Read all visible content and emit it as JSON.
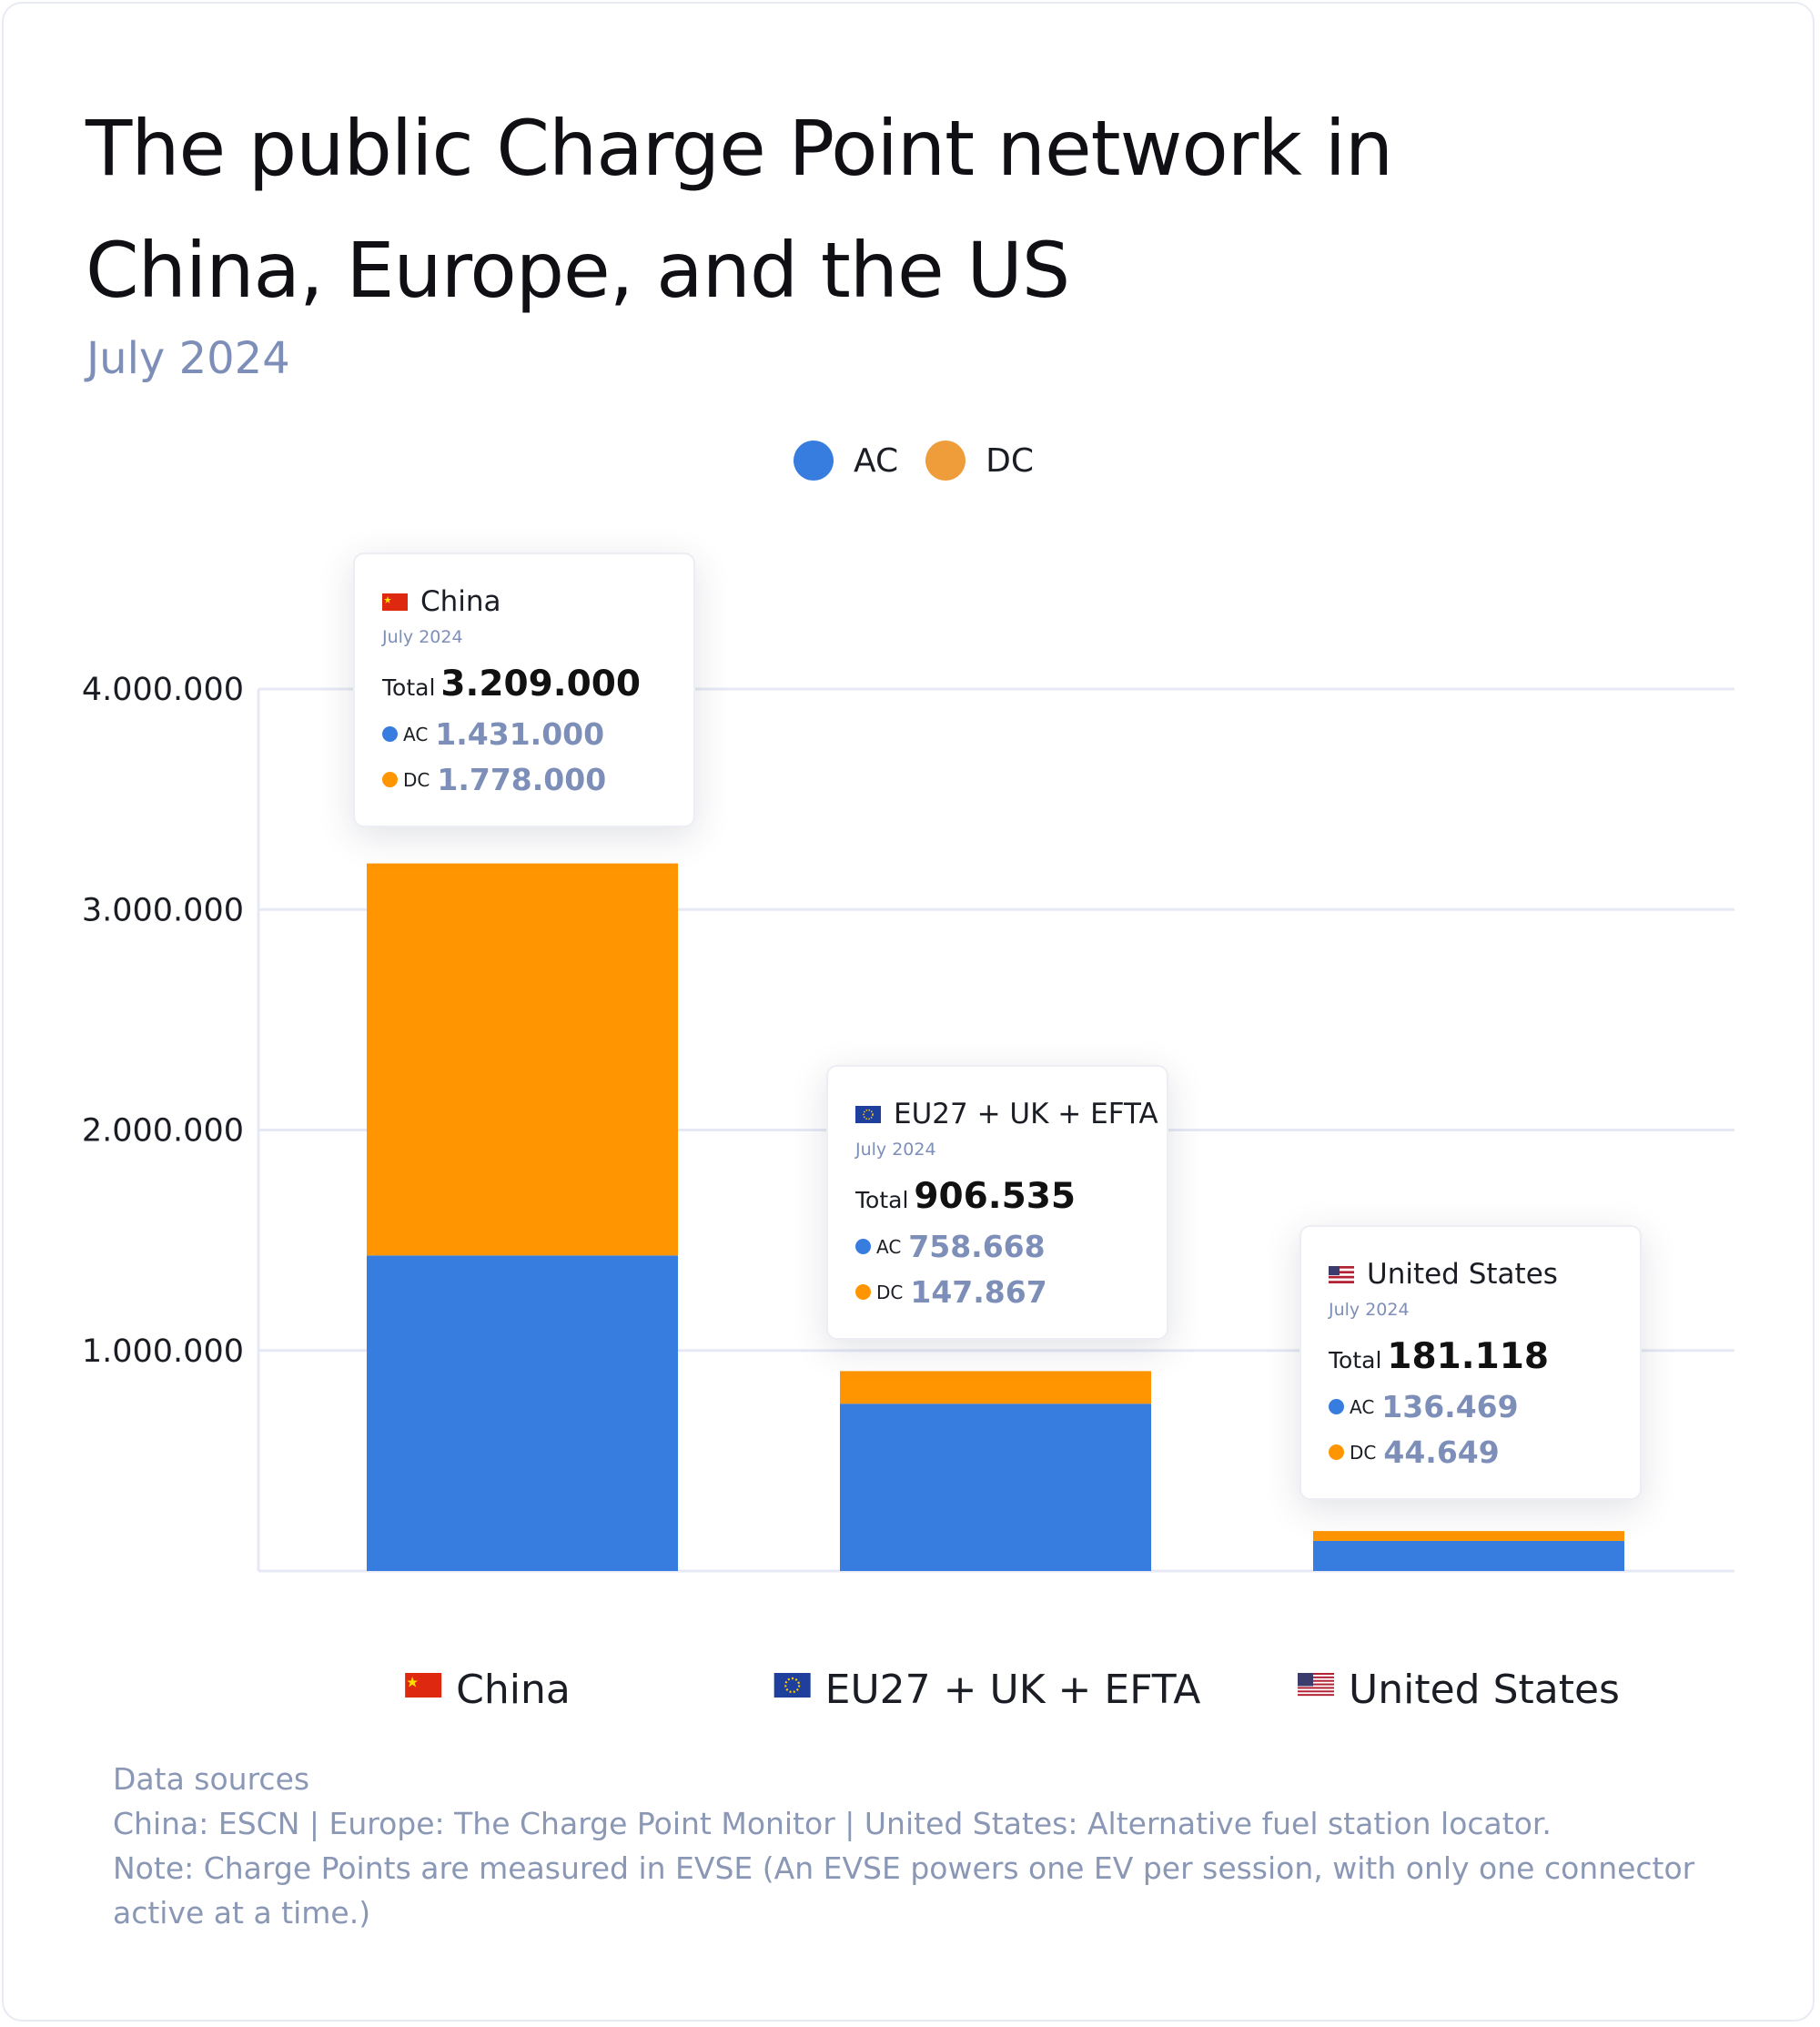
{
  "title": "The public Charge Point network in China, Europe, and the US",
  "subtitle": "July 2024",
  "colors": {
    "ac": "#377de0",
    "dc": "#ff9500",
    "grid": "#e6e9f5",
    "muted": "#7d8fb8"
  },
  "legend": [
    {
      "label": "AC",
      "color": "#377de0"
    },
    {
      "label": "DC",
      "color": "#ef9c3a"
    }
  ],
  "chart_data": {
    "type": "bar",
    "stacked": true,
    "categories": [
      "China",
      "EU27 + UK + EFTA",
      "United States"
    ],
    "category_flags": [
      "flag-china-icon",
      "flag-eu-icon",
      "flag-us-icon"
    ],
    "series": [
      {
        "name": "AC",
        "values": [
          1431000,
          758668,
          136469
        ],
        "color": "#377de0"
      },
      {
        "name": "DC",
        "values": [
          1778000,
          147867,
          44649
        ],
        "color": "#ff9500"
      }
    ],
    "yticks": [
      1000000,
      2000000,
      3000000,
      4000000
    ],
    "ytick_labels": [
      "1.000.000",
      "2.000.000",
      "3.000.000",
      "4.000.000"
    ],
    "ylim": [
      0,
      4000000
    ],
    "grid": true,
    "legend_position": "top-center"
  },
  "tooltips": [
    {
      "country": "China",
      "flag": "flag-china-icon",
      "date": "July 2024",
      "total_label": "Total",
      "total": "3.209.000",
      "ac_label": "AC",
      "ac": "1.431.000",
      "dc_label": "DC",
      "dc": "1.778.000"
    },
    {
      "country": "EU27 + UK + EFTA",
      "flag": "flag-eu-icon",
      "date": "July 2024",
      "total_label": "Total",
      "total": "906.535",
      "ac_label": "AC",
      "ac": "758.668",
      "dc_label": "DC",
      "dc": "147.867"
    },
    {
      "country": "United States",
      "flag": "flag-us-icon",
      "date": "July 2024",
      "total_label": "Total",
      "total": "181.118",
      "ac_label": "AC",
      "ac": "136.469",
      "dc_label": "DC",
      "dc": "44.649"
    }
  ],
  "footer": {
    "heading": "Data sources",
    "sources": "China: ESCN  | Europe: The Charge Point Monitor | United States: Alternative fuel station locator.",
    "note": "Note: Charge Points are measured in EVSE (An EVSE powers one EV per session, with only one connector active at a time.)"
  }
}
